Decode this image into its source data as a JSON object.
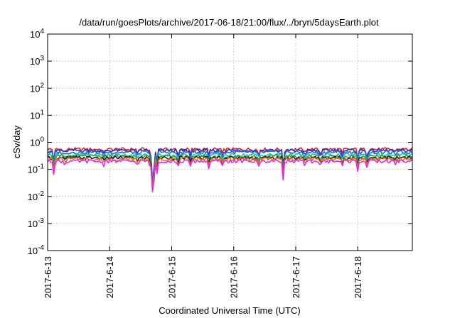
{
  "chart_data": {
    "type": "line",
    "title": "/data/run/goesPlots/archive/2017-06-18/21:00/flux/../bryn/5daysEarth.plot",
    "xlabel": "Coordinated Universal Time (UTC)",
    "ylabel": "cSv/day",
    "yscale": "log",
    "ylim": [
      0.0001,
      10000
    ],
    "xlim": [
      0,
      5.88
    ],
    "grid": true,
    "x_tick_labels": [
      "2017-6-13",
      "2017-6-14",
      "2017-6-15",
      "2017-6-16",
      "2017-6-17",
      "2017-6-18"
    ],
    "x_tick_positions": [
      0,
      1,
      2,
      3,
      4,
      5
    ],
    "y_tick_labels": [
      {
        "base": "10",
        "exp": "4"
      },
      {
        "base": "10",
        "exp": "3"
      },
      {
        "base": "10",
        "exp": "2"
      },
      {
        "base": "10",
        "exp": "1"
      },
      {
        "base": "10",
        "exp": "0"
      },
      {
        "base": "10",
        "exp": "-1"
      },
      {
        "base": "10",
        "exp": "-2"
      },
      {
        "base": "10",
        "exp": "-3"
      },
      {
        "base": "10",
        "exp": "-4"
      }
    ],
    "y_tick_values": [
      10000,
      1000,
      100,
      10,
      1,
      0.1,
      0.01,
      0.001,
      0.0001
    ],
    "baseline_samples": 240,
    "series": [
      {
        "color": "#dd2222",
        "base": 0.55
      },
      {
        "color": "#3333aa",
        "base": 0.5
      },
      {
        "color": "#2266dd",
        "base": 0.43
      },
      {
        "color": "#22bbbb",
        "base": 0.34
      },
      {
        "color": "#22aa44",
        "base": 0.3
      },
      {
        "color": "#222222",
        "base": 0.27
      },
      {
        "color": "#dd7700",
        "base": 0.24
      },
      {
        "color": "#ee22ee",
        "base": 0.2
      }
    ],
    "dips": [
      {
        "x": 0.1,
        "factor": 0.35
      },
      {
        "x": 0.28,
        "factor": 0.7
      },
      {
        "x": 0.9,
        "factor": 0.65
      },
      {
        "x": 1.45,
        "factor": 0.65
      },
      {
        "x": 1.66,
        "factor": 0.45
      },
      {
        "x": 1.7,
        "factor": 0.015
      },
      {
        "x": 1.76,
        "factor": 0.3
      },
      {
        "x": 2.1,
        "factor": 0.5
      },
      {
        "x": 2.3,
        "factor": 0.6
      },
      {
        "x": 2.6,
        "factor": 0.55
      },
      {
        "x": 2.82,
        "factor": 0.6
      },
      {
        "x": 3.4,
        "factor": 0.55
      },
      {
        "x": 3.8,
        "factor": 0.2
      },
      {
        "x": 4.15,
        "factor": 0.6
      },
      {
        "x": 4.4,
        "factor": 0.6
      },
      {
        "x": 4.75,
        "factor": 0.6
      },
      {
        "x": 5.0,
        "factor": 0.45
      },
      {
        "x": 5.15,
        "factor": 0.55
      },
      {
        "x": 5.6,
        "factor": 0.75
      }
    ]
  }
}
